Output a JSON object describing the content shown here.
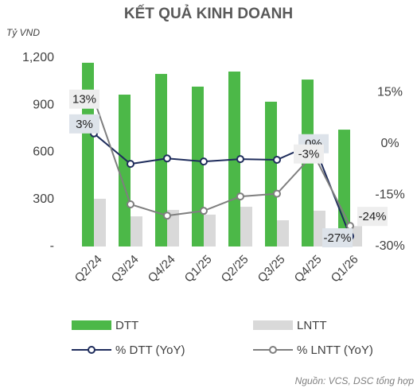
{
  "chart_data": {
    "type": "bar_line",
    "title": "KẾT QUẢ KINH DOANH",
    "y_label": "Tỷ VND",
    "source": "Nguồn: VCS, DSC tổng hợp",
    "categories": [
      "Q2/24",
      "Q3/24",
      "Q4/24",
      "Q1/25",
      "Q2/25",
      "Q3/25",
      "Q4/25",
      "Q1/26"
    ],
    "ylim": [
      0,
      1200
    ],
    "yticks": [
      {
        "value": 0,
        "label": "-"
      },
      300,
      600,
      900,
      {
        "value": 1200,
        "label": "1,200"
      }
    ],
    "y2lim": [
      -30,
      25
    ],
    "y2ticks": [
      {
        "value": 15,
        "label": "15%"
      },
      {
        "value": 0,
        "label": "0%"
      },
      {
        "value": -15,
        "label": "-15%"
      },
      {
        "value": -30,
        "label": "-30%"
      }
    ],
    "series": [
      {
        "name": "DTT",
        "kind": "bar",
        "color": "#4cb848",
        "values": [
          1170,
          967,
          1099,
          1018,
          1114,
          922,
          1063,
          744
        ]
      },
      {
        "name": "LNTT",
        "kind": "bar",
        "color": "#d9d9d9",
        "values": [
          304,
          192,
          233,
          203,
          253,
          167,
          228,
          130
        ]
      },
      {
        "name": "% DTT (YoY)",
        "kind": "line",
        "axis": "y2",
        "color": "#1f2d5c",
        "values": [
          3,
          -5.9,
          -4.3,
          -5.2,
          -4.5,
          -4.7,
          0,
          -27
        ],
        "value_labels": [
          "3%",
          null,
          null,
          null,
          null,
          null,
          "0%",
          "-27%"
        ]
      },
      {
        "name": "% LNTT (YoY)",
        "kind": "line",
        "axis": "y2",
        "color": "#7f7f7f",
        "values": [
          13,
          -17.7,
          -21,
          -19.6,
          -15.4,
          -14.6,
          -3,
          -24
        ],
        "value_labels": [
          "13%",
          null,
          null,
          null,
          null,
          null,
          "-3%",
          "-24%"
        ]
      }
    ]
  }
}
